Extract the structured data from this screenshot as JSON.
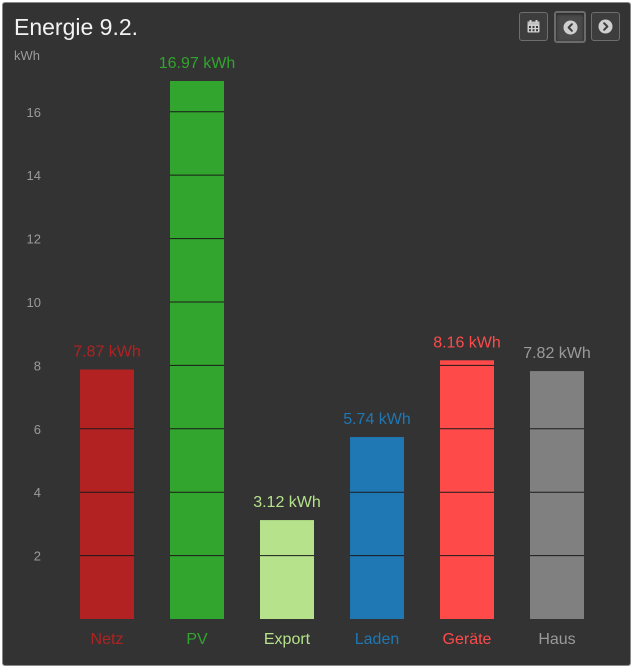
{
  "header": {
    "title": "Energie 9.2."
  },
  "toolbar": {
    "calendar_icon": "calendar-icon",
    "prev_icon": "chevron-left-circle-icon",
    "next_icon": "chevron-right-circle-icon"
  },
  "colors": {
    "panel_background": "#333333",
    "axis_text": "#9a9a9a",
    "segment_line": "#1a1a1a"
  },
  "chart_data": {
    "type": "bar",
    "ylabel": "kWh",
    "ylim": [
      0,
      17.5
    ],
    "yticks": [
      2,
      4,
      6,
      8,
      10,
      12,
      14,
      16
    ],
    "grid": false,
    "legend": "none",
    "categories": [
      "Netz",
      "PV",
      "Export",
      "Laden",
      "Geräte",
      "Haus"
    ],
    "values": [
      7.87,
      16.97,
      3.12,
      5.74,
      8.16,
      7.82
    ],
    "value_labels": [
      "7.87 kWh",
      "16.97 kWh",
      "3.12 kWh",
      "5.74 kWh",
      "8.16 kWh",
      "7.82 kWh"
    ],
    "colors": [
      "#b22222",
      "#31a52d",
      "#b5e28b",
      "#1f77b4",
      "#ff4a4a",
      "#808080"
    ],
    "value_label_colors": [
      "#b22222",
      "#31a52d",
      "#b5e28b",
      "#1f77b4",
      "#ff4a4a",
      "#9a9a9a"
    ],
    "category_label_colors": [
      "#b22222",
      "#31a52d",
      "#b5e28b",
      "#1f77b4",
      "#ff4a4a",
      "#9a9a9a"
    ]
  }
}
